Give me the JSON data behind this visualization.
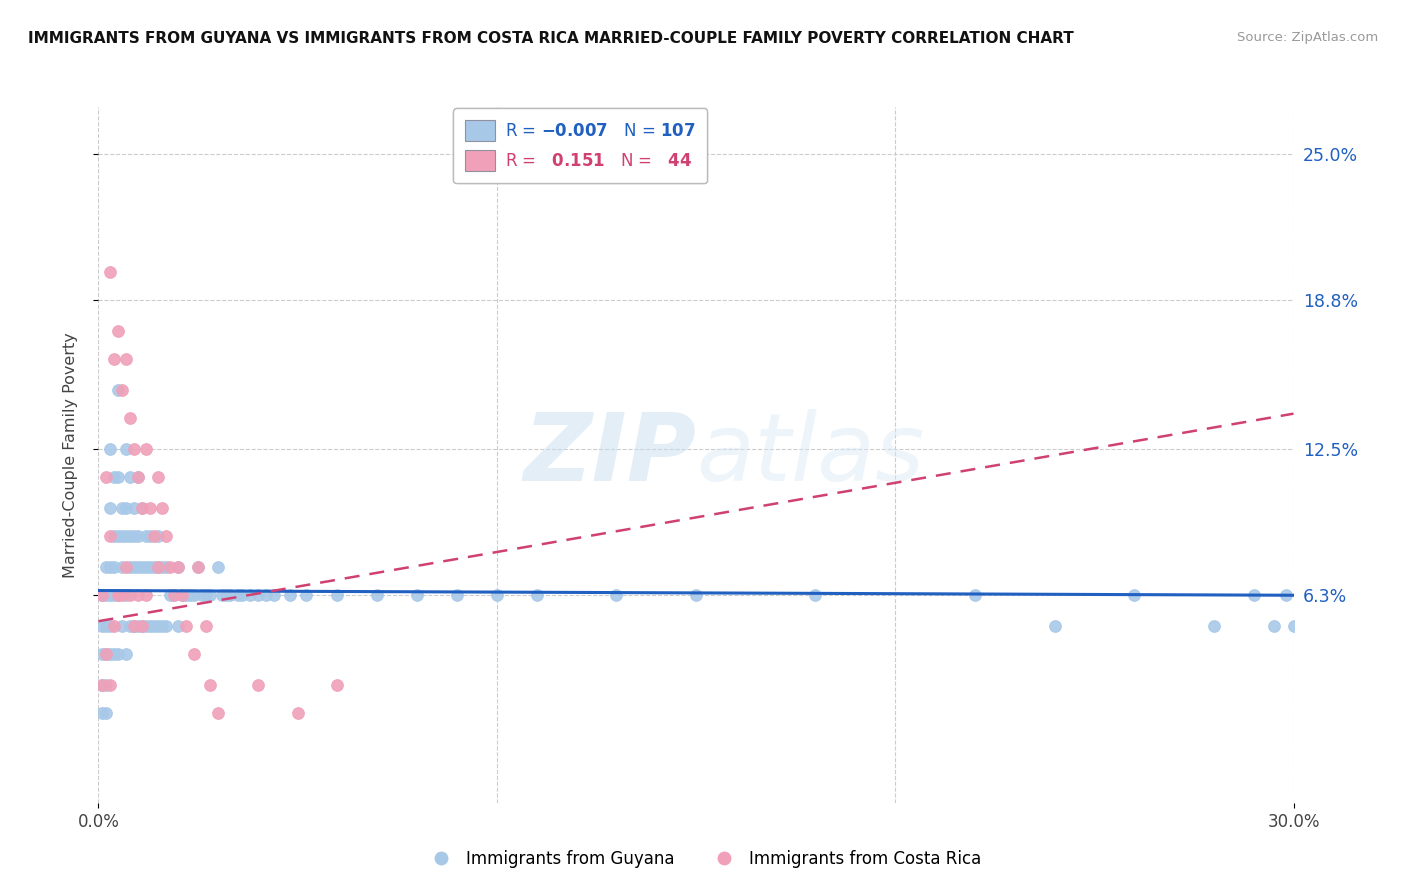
{
  "title": "IMMIGRANTS FROM GUYANA VS IMMIGRANTS FROM COSTA RICA MARRIED-COUPLE FAMILY POVERTY CORRELATION CHART",
  "source": "Source: ZipAtlas.com",
  "ylabel": "Married-Couple Family Poverty",
  "xlim": [
    0.0,
    0.3
  ],
  "ylim": [
    -0.025,
    0.27
  ],
  "ytick_labels": [
    "6.3%",
    "12.5%",
    "18.8%",
    "25.0%"
  ],
  "ytick_positions": [
    0.063,
    0.125,
    0.188,
    0.25
  ],
  "guyana_color": "#a8c8e8",
  "costa_rica_color": "#f0a0b8",
  "guyana_R": -0.007,
  "guyana_N": 107,
  "costa_rica_R": 0.151,
  "costa_rica_N": 44,
  "watermark_zip": "ZIP",
  "watermark_atlas": "atlas",
  "legend_label_guyana": "Immigrants from Guyana",
  "legend_label_costa_rica": "Immigrants from Costa Rica",
  "guyana_line_color": "#2060c0",
  "costa_rica_line_color": "#d04070",
  "guyana_scatter_x": [
    0.001,
    0.001,
    0.001,
    0.001,
    0.001,
    0.002,
    0.002,
    0.002,
    0.002,
    0.002,
    0.002,
    0.003,
    0.003,
    0.003,
    0.003,
    0.003,
    0.003,
    0.004,
    0.004,
    0.004,
    0.004,
    0.004,
    0.005,
    0.005,
    0.005,
    0.005,
    0.005,
    0.006,
    0.006,
    0.006,
    0.006,
    0.007,
    0.007,
    0.007,
    0.007,
    0.007,
    0.008,
    0.008,
    0.008,
    0.008,
    0.009,
    0.009,
    0.009,
    0.009,
    0.01,
    0.01,
    0.01,
    0.01,
    0.011,
    0.011,
    0.011,
    0.012,
    0.012,
    0.012,
    0.013,
    0.013,
    0.013,
    0.014,
    0.014,
    0.015,
    0.015,
    0.015,
    0.016,
    0.016,
    0.017,
    0.017,
    0.018,
    0.019,
    0.02,
    0.02,
    0.021,
    0.022,
    0.023,
    0.024,
    0.025,
    0.026,
    0.027,
    0.028,
    0.03,
    0.031,
    0.032,
    0.033,
    0.035,
    0.036,
    0.038,
    0.04,
    0.042,
    0.044,
    0.048,
    0.052,
    0.06,
    0.07,
    0.08,
    0.09,
    0.1,
    0.11,
    0.13,
    0.15,
    0.18,
    0.22,
    0.24,
    0.26,
    0.28,
    0.29,
    0.295,
    0.298,
    0.3
  ],
  "guyana_scatter_y": [
    0.063,
    0.05,
    0.038,
    0.025,
    0.013,
    0.075,
    0.063,
    0.05,
    0.038,
    0.025,
    0.013,
    0.125,
    0.1,
    0.075,
    0.063,
    0.05,
    0.038,
    0.113,
    0.088,
    0.075,
    0.063,
    0.038,
    0.15,
    0.113,
    0.088,
    0.063,
    0.038,
    0.1,
    0.088,
    0.075,
    0.05,
    0.125,
    0.1,
    0.088,
    0.063,
    0.038,
    0.113,
    0.088,
    0.075,
    0.05,
    0.1,
    0.088,
    0.075,
    0.05,
    0.113,
    0.088,
    0.075,
    0.05,
    0.1,
    0.075,
    0.05,
    0.088,
    0.075,
    0.05,
    0.088,
    0.075,
    0.05,
    0.075,
    0.05,
    0.088,
    0.075,
    0.05,
    0.075,
    0.05,
    0.075,
    0.05,
    0.063,
    0.063,
    0.075,
    0.05,
    0.063,
    0.063,
    0.063,
    0.063,
    0.075,
    0.063,
    0.063,
    0.063,
    0.075,
    0.063,
    0.063,
    0.063,
    0.063,
    0.063,
    0.063,
    0.063,
    0.063,
    0.063,
    0.063,
    0.063,
    0.063,
    0.063,
    0.063,
    0.063,
    0.063,
    0.063,
    0.063,
    0.063,
    0.063,
    0.063,
    0.05,
    0.063,
    0.05,
    0.063,
    0.05,
    0.063,
    0.05
  ],
  "costa_rica_scatter_x": [
    0.001,
    0.001,
    0.002,
    0.002,
    0.003,
    0.003,
    0.003,
    0.004,
    0.004,
    0.005,
    0.005,
    0.006,
    0.006,
    0.007,
    0.007,
    0.008,
    0.008,
    0.009,
    0.009,
    0.01,
    0.01,
    0.011,
    0.011,
    0.012,
    0.012,
    0.013,
    0.014,
    0.015,
    0.015,
    0.016,
    0.017,
    0.018,
    0.019,
    0.02,
    0.021,
    0.022,
    0.024,
    0.025,
    0.027,
    0.028,
    0.03,
    0.04,
    0.05,
    0.06
  ],
  "costa_rica_scatter_y": [
    0.063,
    0.025,
    0.113,
    0.038,
    0.2,
    0.088,
    0.025,
    0.163,
    0.05,
    0.175,
    0.063,
    0.15,
    0.063,
    0.163,
    0.075,
    0.138,
    0.063,
    0.125,
    0.05,
    0.113,
    0.063,
    0.1,
    0.05,
    0.125,
    0.063,
    0.1,
    0.088,
    0.113,
    0.075,
    0.1,
    0.088,
    0.075,
    0.063,
    0.075,
    0.063,
    0.05,
    0.038,
    0.075,
    0.05,
    0.025,
    0.013,
    0.025,
    0.013,
    0.025
  ],
  "guyana_line_x": [
    0.0,
    0.3
  ],
  "guyana_line_y": [
    0.065,
    0.063
  ],
  "costa_rica_line_x": [
    0.0,
    0.3
  ],
  "costa_rica_line_y": [
    0.052,
    0.14
  ]
}
